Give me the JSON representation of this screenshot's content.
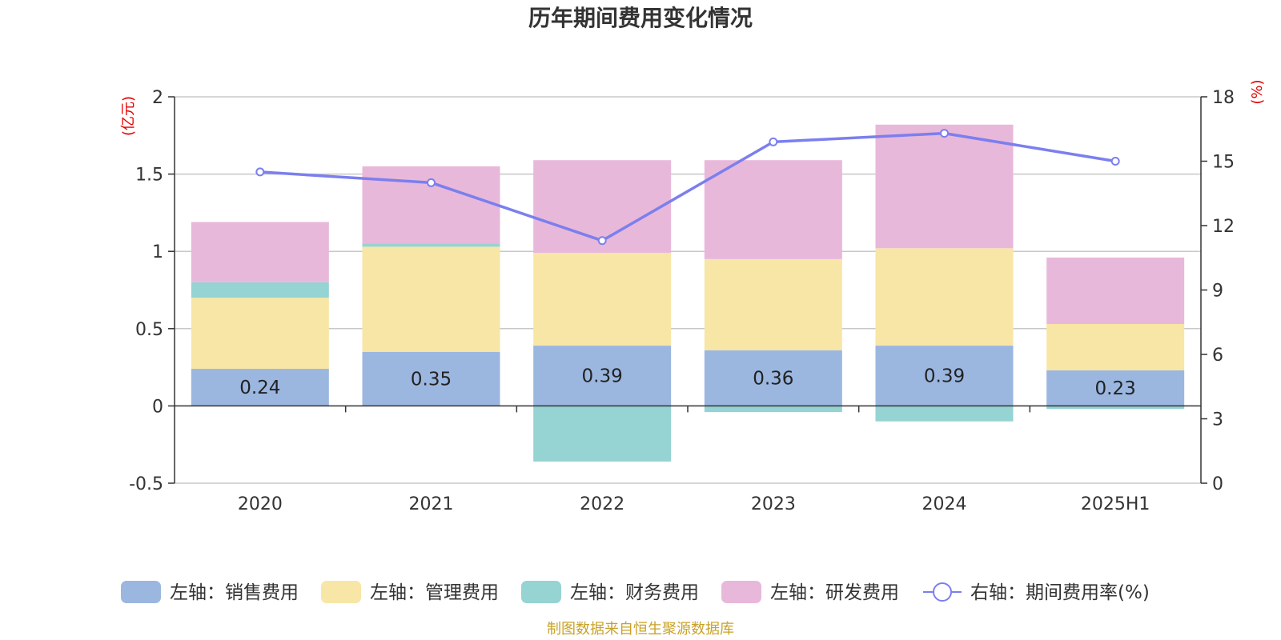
{
  "chart_data": {
    "type": "bar",
    "title": "历年期间费用变化情况",
    "categories": [
      "2020",
      "2021",
      "2022",
      "2023",
      "2024",
      "2025H1"
    ],
    "left_axis": {
      "unit": "(亿元)",
      "range": [
        -0.5,
        2
      ],
      "ticks": [
        "-0.5",
        "0",
        "0.5",
        "1",
        "1.5",
        "2"
      ],
      "tick_values": [
        -0.5,
        0,
        0.5,
        1,
        1.5,
        2
      ]
    },
    "right_axis": {
      "unit": "(%)",
      "range": [
        0,
        18
      ],
      "ticks": [
        "0",
        "3",
        "6",
        "9",
        "12",
        "15",
        "18"
      ],
      "tick_values": [
        0,
        3,
        6,
        9,
        12,
        15,
        18
      ]
    },
    "series": [
      {
        "name": "左轴：销售费用",
        "axis": "left",
        "kind": "stacked-bar",
        "color": "#9BB7E0",
        "values": [
          0.24,
          0.35,
          0.39,
          0.36,
          0.39,
          0.23
        ],
        "labels": [
          "0.24",
          "0.35",
          "0.39",
          "0.36",
          "0.39",
          "0.23"
        ]
      },
      {
        "name": "左轴：管理费用",
        "axis": "left",
        "kind": "stacked-bar",
        "color": "#F8E6A6",
        "values": [
          0.46,
          0.68,
          0.6,
          0.59,
          0.63,
          0.3
        ]
      },
      {
        "name": "左轴：财务费用",
        "axis": "left",
        "kind": "stacked-bar",
        "color": "#96D3D3",
        "values": [
          0.1,
          0.02,
          -0.36,
          -0.04,
          -0.1,
          -0.02
        ]
      },
      {
        "name": "左轴：研发费用",
        "axis": "left",
        "kind": "stacked-bar",
        "color": "#E8B8DA",
        "values": [
          0.39,
          0.5,
          0.6,
          0.64,
          0.8,
          0.43
        ]
      },
      {
        "name": "右轴：期间费用率(%)",
        "axis": "right",
        "kind": "line",
        "color": "#7B7FEE",
        "values": [
          14.5,
          14.0,
          11.3,
          15.9,
          16.3,
          15.0
        ]
      }
    ],
    "grid": true,
    "legend": "bottom",
    "unit_color": "#E60000"
  },
  "footer": {
    "text": "制图数据来自恒生聚源数据库",
    "color": "#C9A227"
  }
}
